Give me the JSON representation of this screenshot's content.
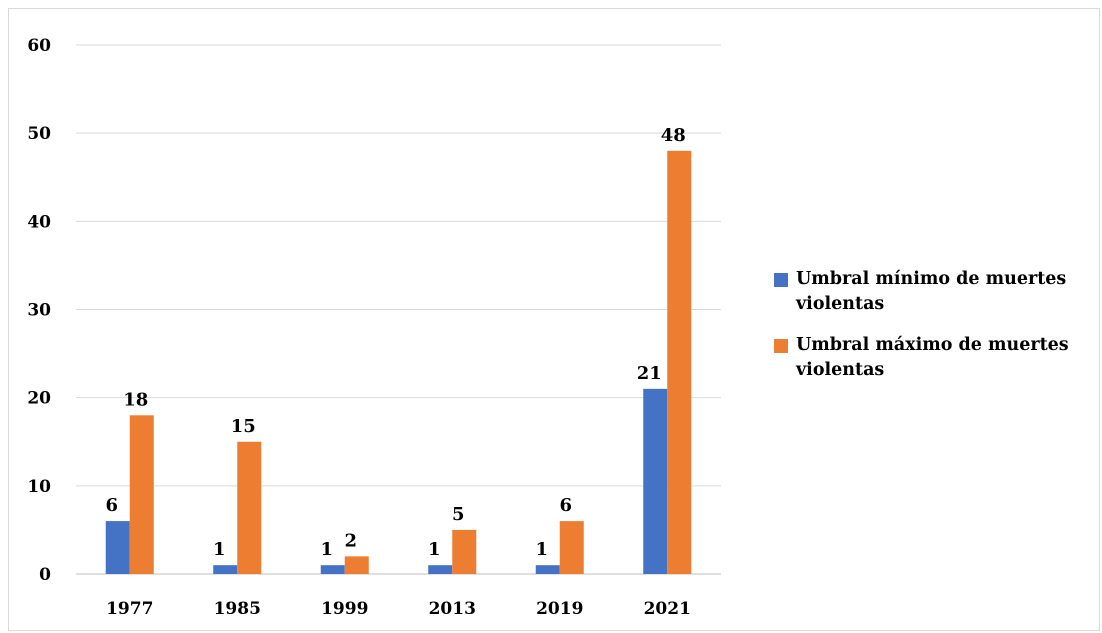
{
  "chart_data": {
    "type": "bar",
    "title": "",
    "xlabel": "",
    "ylabel": "",
    "categories": [
      "1977",
      "1985",
      "1999",
      "2013",
      "2019",
      "2021"
    ],
    "series": [
      {
        "name": "Umbral mínimo de muertes violentas",
        "color": "#4472c4",
        "values": [
          6,
          1,
          1,
          1,
          1,
          21
        ]
      },
      {
        "name": "Umbral máximo de muertes violentas",
        "color": "#ed7d31",
        "values": [
          18,
          15,
          2,
          5,
          6,
          48
        ]
      }
    ],
    "ylim": [
      0,
      60
    ],
    "yticks": [
      0,
      10,
      20,
      30,
      40,
      50,
      60
    ],
    "grid": true,
    "data_labels": true,
    "legend_position": "right"
  }
}
